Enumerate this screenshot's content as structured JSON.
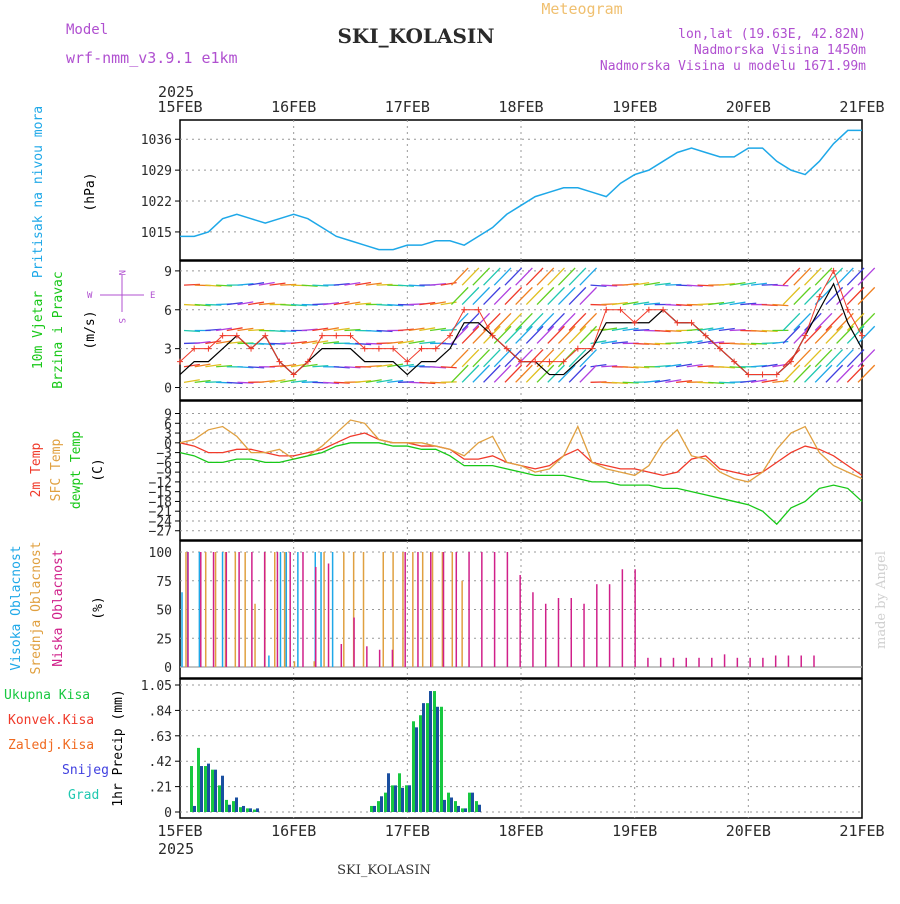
{
  "header": {
    "model_label": "Model",
    "model_name": "wrf-nmm_v3.9.1 e1km",
    "title": "SKI_KOLASIN",
    "meteogram_label": "Meteogram",
    "coords": "lon,lat (19.63E, 42.82N)",
    "elevation": "Nadmorska Visina 1450m",
    "model_elevation": "Nadmorska Visina u modelu 1671.99m",
    "footer_station": "SKI_KOLASIN",
    "credit": "made by Angel",
    "year": "2025"
  },
  "colors": {
    "pressure": "#1ea8e8",
    "temp2m": "#f03a2a",
    "sfc": "#e0a040",
    "dew": "#18c818",
    "total": "#18c840",
    "conv": "#f03a2a",
    "frozen": "#f06a20",
    "snow": "#4040e0",
    "grad": "#20c8b0",
    "high": "#1ea8e8",
    "mid": "#e0a040",
    "low": "#d0208a",
    "label_magenta": "#b050d0",
    "meteogram": "#f0c070",
    "wind_speed": "#000000",
    "gust": "#f03a2a"
  },
  "chart_data": [
    {
      "type": "line",
      "panel": "pressure",
      "x_ticks": [
        "15FEB",
        "16FEB",
        "17FEB",
        "18FEB",
        "19FEB",
        "20FEB",
        "21FEB"
      ],
      "ylabels": [
        "Pritisak na nivou mora"
      ],
      "unit": "(hPa)",
      "yticks": [
        1015,
        1022,
        1029,
        1036
      ],
      "ylim": [
        1010,
        1039
      ],
      "series": [
        {
          "values": [
            1014,
            1014,
            1015,
            1018,
            1019,
            1018,
            1017,
            1018,
            1019,
            1018,
            1016,
            1014,
            1013,
            1012,
            1011,
            1011,
            1012,
            1012,
            1013,
            1013,
            1012,
            1014,
            1016,
            1019,
            1021,
            1023,
            1024,
            1025,
            1025,
            1024,
            1023,
            1026,
            1028,
            1029,
            1031,
            1033,
            1034,
            1033,
            1032,
            1032,
            1034,
            1034,
            1031,
            1029,
            1028,
            1031,
            1035,
            1038,
            1038
          ]
        }
      ]
    },
    {
      "type": "line",
      "panel": "wind",
      "ylabels": [
        "10m Vjetar",
        "Brzina i Pravac"
      ],
      "unit": "(m/s)",
      "compass": [
        "W",
        "E",
        "N",
        "S"
      ],
      "yticks": [
        0,
        3,
        6,
        9
      ],
      "ylim": [
        -0.5,
        9.3
      ],
      "series": [
        {
          "name": "speed",
          "values": [
            1,
            2,
            2,
            3,
            4,
            3,
            4,
            2,
            1,
            2,
            3,
            3,
            3,
            2,
            2,
            2,
            1,
            2,
            2,
            3,
            5,
            5,
            4,
            3,
            2,
            2,
            1,
            1,
            2,
            3,
            5,
            5,
            5,
            5,
            6,
            5,
            5,
            4,
            3,
            2,
            1,
            1,
            1,
            2,
            4,
            6,
            8,
            5,
            3
          ]
        },
        {
          "name": "gust",
          "values": [
            2,
            3,
            3,
            4,
            4,
            3,
            4,
            2,
            1,
            2,
            4,
            4,
            4,
            3,
            3,
            3,
            2,
            3,
            3,
            4,
            6,
            6,
            4,
            3,
            2,
            2,
            2,
            2,
            3,
            3,
            6,
            6,
            5,
            6,
            6,
            5,
            5,
            4,
            3,
            2,
            1,
            1,
            1,
            2,
            4,
            7,
            9,
            6,
            4
          ]
        }
      ]
    },
    {
      "type": "line",
      "panel": "temperature",
      "ylabels": [
        "2m Temp",
        "SFC Temp",
        "dewpt Temp"
      ],
      "unit": "(C)",
      "yticks": [
        9,
        6,
        3,
        0,
        -3,
        -6,
        -9,
        -12,
        -15,
        -18,
        -21,
        -24,
        -27
      ],
      "ylim": [
        -28,
        11
      ],
      "series": [
        {
          "name": "2m Temp",
          "values": [
            0,
            -1,
            -3,
            -3,
            -2,
            -2,
            -3,
            -4,
            -4,
            -3,
            -2,
            0,
            2,
            3,
            1,
            0,
            0,
            -1,
            -1,
            -2,
            -5,
            -5,
            -4,
            -6,
            -7,
            -8,
            -7,
            -4,
            -2,
            -6,
            -7,
            -8,
            -8,
            -9,
            -10,
            -9,
            -5,
            -4,
            -8,
            -9,
            -10,
            -9,
            -6,
            -3,
            -1,
            -2,
            -4,
            -7,
            -10
          ]
        },
        {
          "name": "SFC Temp",
          "values": [
            0,
            1,
            4,
            5,
            2,
            -3,
            -3,
            -2,
            -5,
            -4,
            -1,
            3,
            7,
            6,
            1,
            0,
            0,
            0,
            -1,
            -2,
            -4,
            0,
            2,
            -6,
            -7,
            -9,
            -8,
            -4,
            5,
            -6,
            -8,
            -9,
            -10,
            -7,
            0,
            4,
            -4,
            -5,
            -9,
            -11,
            -12,
            -9,
            -2,
            3,
            5,
            -3,
            -7,
            -9,
            -11
          ]
        },
        {
          "name": "dewpt Temp",
          "values": [
            -3,
            -4,
            -6,
            -6,
            -5,
            -5,
            -6,
            -6,
            -5,
            -4,
            -3,
            -1,
            0,
            0,
            0,
            -1,
            -1,
            -2,
            -2,
            -4,
            -7,
            -7,
            -7,
            -8,
            -9,
            -10,
            -10,
            -10,
            -11,
            -12,
            -12,
            -13,
            -13,
            -13,
            -14,
            -14,
            -15,
            -16,
            -17,
            -18,
            -19,
            -21,
            -25,
            -20,
            -18,
            -14,
            -13,
            -14,
            -18
          ]
        }
      ]
    },
    {
      "type": "bar",
      "panel": "cloud",
      "ylabels": [
        "Visoka Oblacnost",
        "Srednja Oblacnost",
        "Niska Oblacnost"
      ],
      "unit": "(%)",
      "yticks": [
        0,
        25,
        50,
        75,
        100
      ],
      "ylim": [
        0,
        100
      ],
      "series": [
        {
          "name": "Visoka Oblacnost",
          "values": [
            65,
            100,
            0,
            100,
            0,
            0,
            0,
            100,
            0,
            0,
            0,
            0,
            0,
            0,
            0,
            10,
            0,
            100,
            100,
            0,
            100,
            0,
            0,
            100,
            100,
            0,
            100,
            0,
            0,
            0
          ]
        },
        {
          "name": "Srednja Oblacnost",
          "values": [
            100,
            0,
            100,
            100,
            100,
            100,
            100,
            55,
            100,
            100,
            100,
            5,
            0,
            5,
            100,
            0,
            100,
            100,
            100,
            0,
            100,
            100,
            100,
            100,
            100,
            100,
            100,
            100,
            75,
            0
          ]
        },
        {
          "name": "Niska Oblacnost",
          "values": [
            100,
            100,
            100,
            100,
            100,
            100,
            100,
            100,
            100,
            100,
            87,
            90,
            20,
            43,
            18,
            15,
            15,
            100,
            100,
            100,
            100,
            100,
            100,
            100,
            100,
            100,
            80,
            65,
            55,
            60,
            60,
            55,
            72,
            72,
            85,
            85,
            8,
            8,
            8,
            8,
            8,
            8,
            11,
            8,
            8,
            8,
            10,
            10,
            10,
            10
          ]
        }
      ]
    },
    {
      "type": "bar",
      "panel": "precipitation",
      "ylabels": [
        "Ukupna Kisa",
        "Konvek.Kisa",
        "Zaledj.Kisa",
        "Snijeg",
        "Grad"
      ],
      "unit": "1hr Precip (mm)",
      "yticks": [
        0,
        0.21,
        0.42,
        0.63,
        0.84,
        1.05
      ],
      "ylim": [
        0,
        1.05
      ],
      "x_ticks": [
        "15FEB",
        "16FEB",
        "17FEB",
        "18FEB",
        "19FEB",
        "20FEB",
        "21FEB"
      ],
      "series": [
        {
          "name": "Ukupna Kisa",
          "values": [
            0.38,
            0.53,
            0.38,
            0.35,
            0.22,
            0.1,
            0.09,
            0.04,
            0.03,
            0.02,
            0.05,
            0.09,
            0.16,
            0.22,
            0.32,
            0.22,
            0.13,
            0.09,
            0.05,
            0.22,
            0.75,
            0.8,
            0.9,
            1.0,
            0.87,
            0.16,
            0.09,
            0.03,
            0.16,
            0.09
          ]
        },
        {
          "name": "Snijeg",
          "values": [
            0.05,
            0.38,
            0.4,
            0.35,
            0.3,
            0.06,
            0.12,
            0.05,
            0.03,
            0.03,
            0.05,
            0.13,
            0.32,
            0.22,
            0.2,
            0.22,
            0.22,
            0.15,
            0.05,
            0.22,
            0.7,
            0.9,
            1.0,
            0.87,
            0.1,
            0.12,
            0.05,
            0.03,
            0.16,
            0.06
          ]
        }
      ]
    }
  ]
}
